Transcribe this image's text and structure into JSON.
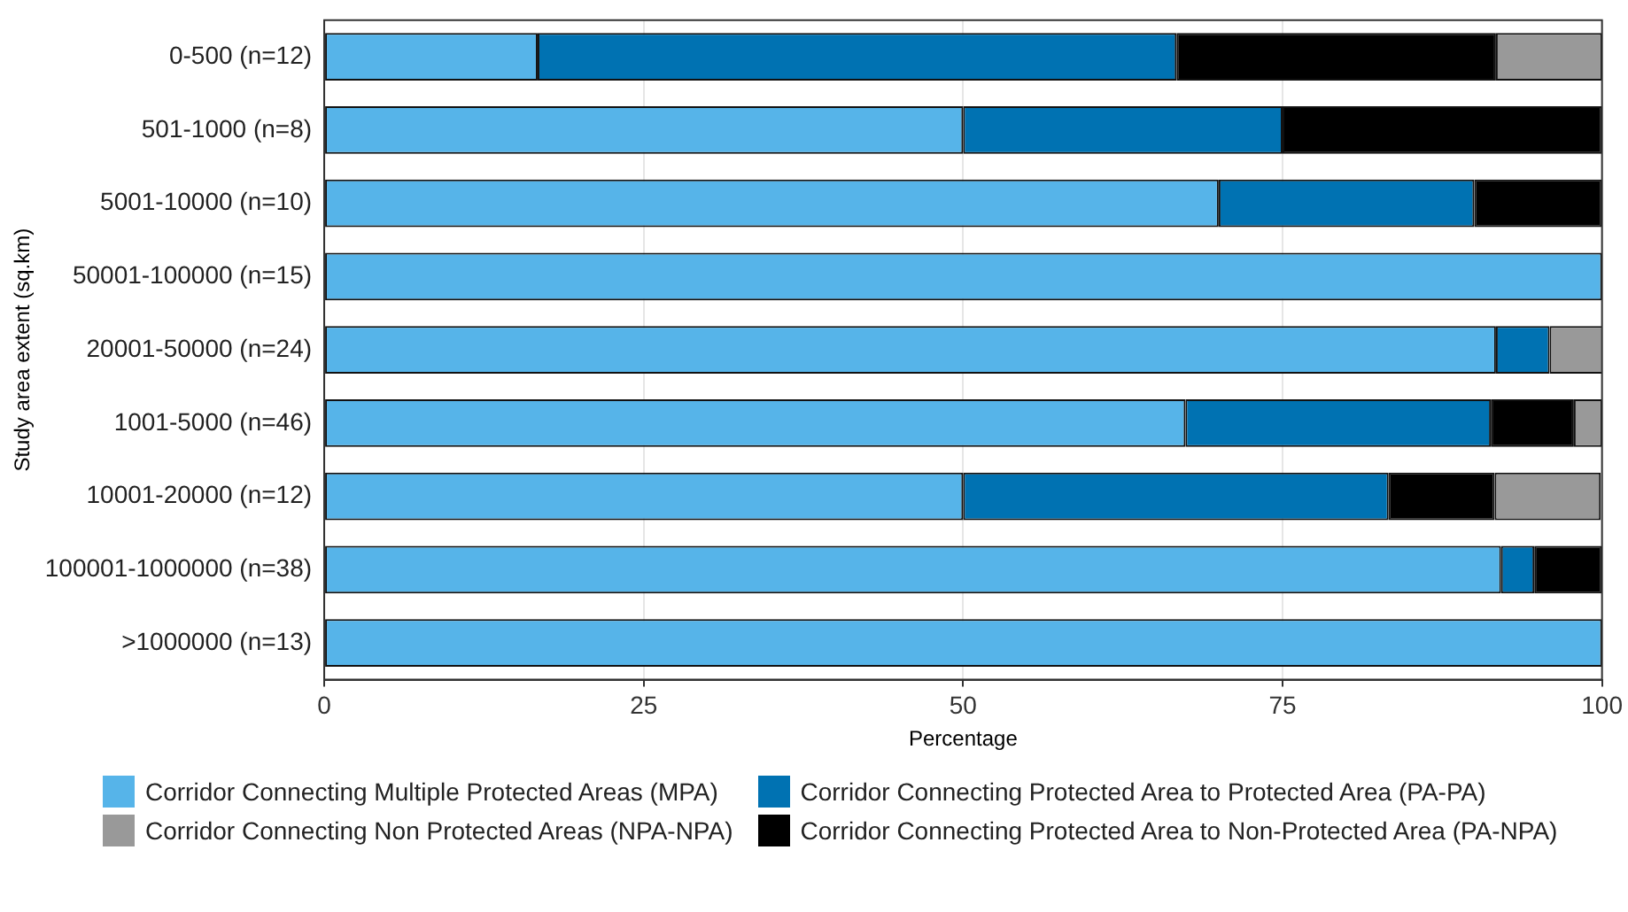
{
  "chart_data": {
    "type": "bar",
    "orientation": "horizontal",
    "stacked": true,
    "xlabel": "Percentage",
    "ylabel": "Study area extent (sq.km)",
    "categories": [
      "0-500 (n=12)",
      "501-1000 (n=8)",
      "5001-10000 (n=10)",
      "50001-100000 (n=15)",
      "20001-50000 (n=24)",
      "1001-5000 (n=46)",
      "10001-20000 (n=12)",
      "100001-1000000 (n=38)",
      ">1000000 (n=13)"
    ],
    "series": [
      {
        "name": "Corridor Connecting Multiple Protected Areas (MPA)",
        "color": "#56b4e9",
        "values": [
          16.7,
          50,
          70,
          100,
          91.7,
          67.4,
          50,
          92.1,
          100
        ]
      },
      {
        "name": "Corridor Connecting Protected Area to Protected Area (PA-PA)",
        "color": "#0072b2",
        "values": [
          50,
          25,
          20,
          null,
          4.2,
          23.9,
          33.3,
          2.6,
          null
        ]
      },
      {
        "name": "Corridor Connecting Protected Area to Non-Protected Area (PA-NPA)",
        "color": "#000000",
        "values": [
          25,
          25,
          10,
          null,
          null,
          6.5,
          8.3,
          5.3,
          null
        ]
      },
      {
        "name": "Corridor Connecting Non Protected Areas (NPA-NPA)",
        "color": "#999999",
        "values": [
          8.3,
          null,
          null,
          null,
          4.2,
          2.2,
          8.3,
          null,
          null
        ]
      }
    ],
    "xlim": [
      0,
      100
    ],
    "xticks": [
      0,
      25,
      50,
      75,
      100
    ],
    "grid": "x",
    "legend": "bottom"
  }
}
